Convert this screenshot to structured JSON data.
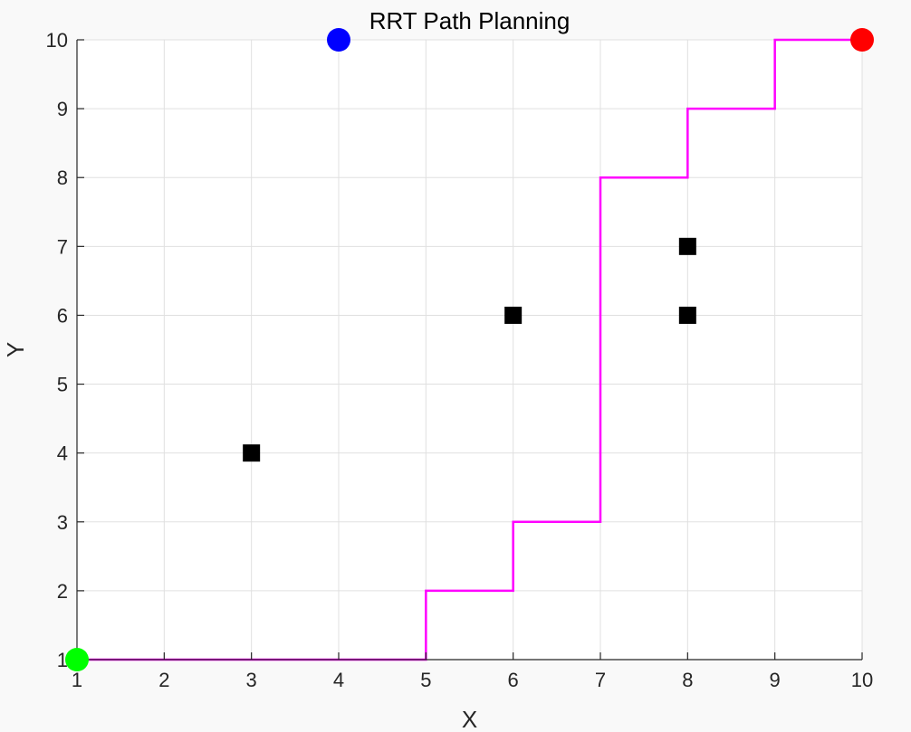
{
  "chart_data": {
    "type": "scatter",
    "title": "RRT Path Planning",
    "xlabel": "X",
    "ylabel": "Y",
    "xlim": [
      1,
      10
    ],
    "ylim": [
      1,
      10
    ],
    "x_ticks": [
      "1",
      "2",
      "3",
      "4",
      "5",
      "6",
      "7",
      "8",
      "9",
      "10"
    ],
    "y_ticks": [
      "1",
      "2",
      "3",
      "4",
      "5",
      "6",
      "7",
      "8",
      "9",
      "10"
    ],
    "grid": true,
    "background_color": "#ffffff",
    "figure_color": "#f9f9f9",
    "start": {
      "x": 1,
      "y": 1,
      "color": "#00ff00"
    },
    "goal": {
      "x": 10,
      "y": 10,
      "color": "#ff0000"
    },
    "extra_point": {
      "x": 4,
      "y": 10,
      "color": "#0000ff"
    },
    "obstacles": {
      "color": "#000000",
      "points": [
        {
          "x": 3,
          "y": 4
        },
        {
          "x": 6,
          "y": 6
        },
        {
          "x": 8,
          "y": 7
        },
        {
          "x": 8,
          "y": 6
        }
      ]
    },
    "path": {
      "color": "#ff00ff",
      "points": [
        {
          "x": 1,
          "y": 1
        },
        {
          "x": 2,
          "y": 1
        },
        {
          "x": 3,
          "y": 1
        },
        {
          "x": 4,
          "y": 1
        },
        {
          "x": 5,
          "y": 1
        },
        {
          "x": 5,
          "y": 2
        },
        {
          "x": 6,
          "y": 2
        },
        {
          "x": 6,
          "y": 3
        },
        {
          "x": 7,
          "y": 3
        },
        {
          "x": 7,
          "y": 8
        },
        {
          "x": 8,
          "y": 8
        },
        {
          "x": 8,
          "y": 9
        },
        {
          "x": 9,
          "y": 9
        },
        {
          "x": 9,
          "y": 10
        },
        {
          "x": 10,
          "y": 10
        }
      ]
    }
  }
}
